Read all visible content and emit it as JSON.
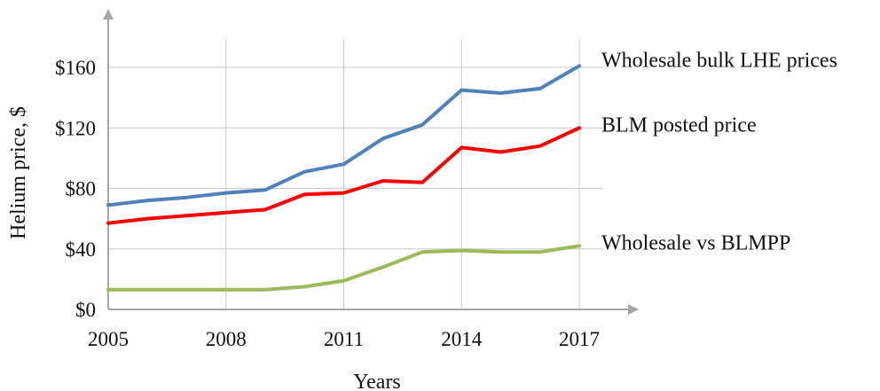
{
  "chart_data": {
    "type": "line",
    "xlabel": "Years",
    "ylabel": "Helium price, $",
    "xlim": [
      2005,
      2017
    ],
    "ylim": [
      0,
      180
    ],
    "x_ticks": [
      2005,
      2008,
      2011,
      2014,
      2017
    ],
    "x_tick_labels": [
      "2005",
      "2008",
      "2011",
      "2014",
      "2017"
    ],
    "y_ticks": [
      0,
      40,
      80,
      120,
      160
    ],
    "y_tick_labels": [
      "$0",
      "$40",
      "$80",
      "$120",
      "$160"
    ],
    "grid": true,
    "legend": "inline labels at right end of each line",
    "x": [
      2005,
      2006,
      2007,
      2008,
      2009,
      2010,
      2011,
      2012,
      2013,
      2014,
      2015,
      2016,
      2017
    ],
    "series": [
      {
        "name": "Wholesale bulk LHE prices",
        "color": "#4f81bd",
        "values": [
          69,
          72,
          74,
          77,
          79,
          91,
          96,
          113,
          122,
          145,
          143,
          146,
          161
        ]
      },
      {
        "name": "BLM posted price",
        "color": "#ff0000",
        "values": [
          57,
          60,
          62,
          64,
          66,
          76,
          77,
          85,
          84,
          107,
          104,
          108,
          120
        ]
      },
      {
        "name": "Wholesale vs BLMPP",
        "color": "#9bbb59",
        "values": [
          13,
          13,
          13,
          13,
          13,
          15,
          19,
          28,
          38,
          39,
          38,
          38,
          42
        ]
      }
    ]
  }
}
